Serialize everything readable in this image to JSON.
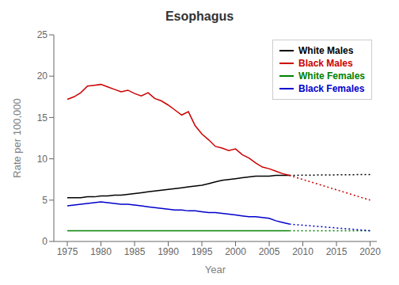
{
  "chart_data": {
    "type": "line",
    "title": "Esophagus",
    "xlabel": "Year",
    "ylabel": "Rate per 100,000",
    "x": [
      1975,
      1976,
      1977,
      1978,
      1979,
      1980,
      1981,
      1982,
      1983,
      1984,
      1985,
      1986,
      1987,
      1988,
      1989,
      1990,
      1991,
      1992,
      1993,
      1994,
      1995,
      1996,
      1997,
      1998,
      1999,
      2000,
      2001,
      2002,
      2003,
      2004,
      2005,
      2006,
      2007,
      2008,
      2020
    ],
    "xlim": [
      1973,
      2021
    ],
    "xticks": [
      1975,
      1980,
      1985,
      1990,
      1995,
      2000,
      2005,
      2010,
      2015,
      2020
    ],
    "ylim": [
      0,
      25
    ],
    "yticks": [
      0,
      5,
      10,
      15,
      20,
      25
    ],
    "grid": false,
    "legend": "upper right",
    "series": [
      {
        "name": "White Males",
        "color": "#000000",
        "line_style": "solid",
        "values": [
          5.3,
          5.3,
          5.3,
          5.4,
          5.4,
          5.5,
          5.5,
          5.6,
          5.6,
          5.7,
          5.8,
          5.9,
          6.0,
          6.1,
          6.2,
          6.3,
          6.4,
          6.5,
          6.6,
          6.7,
          6.8,
          7.0,
          7.2,
          7.4,
          7.5,
          7.6,
          7.7,
          7.8,
          7.9,
          7.9,
          7.9,
          8.0,
          8.0,
          8.0,
          null
        ]
      },
      {
        "name": "Black Males",
        "color": "#cc0000",
        "line_style": "solid",
        "values": [
          17.2,
          17.5,
          18.0,
          18.8,
          18.9,
          19.0,
          18.7,
          18.4,
          18.1,
          18.3,
          17.9,
          17.6,
          18.0,
          17.3,
          17.0,
          16.5,
          15.9,
          15.3,
          15.7,
          14.0,
          13.0,
          12.3,
          11.5,
          11.3,
          11.0,
          11.2,
          10.5,
          10.1,
          9.5,
          9.0,
          8.8,
          8.5,
          8.2,
          8.0,
          null
        ]
      },
      {
        "name": "White Females",
        "color": "#008000",
        "line_style": "solid",
        "values": [
          1.3,
          1.3,
          1.3,
          1.3,
          1.3,
          1.3,
          1.3,
          1.3,
          1.3,
          1.3,
          1.3,
          1.3,
          1.3,
          1.3,
          1.3,
          1.3,
          1.3,
          1.3,
          1.3,
          1.3,
          1.3,
          1.3,
          1.3,
          1.3,
          1.3,
          1.3,
          1.3,
          1.3,
          1.3,
          1.3,
          1.3,
          1.3,
          1.3,
          1.3,
          null
        ]
      },
      {
        "name": "Black Females",
        "color": "#0000cc",
        "line_style": "solid",
        "values": [
          4.3,
          4.4,
          4.5,
          4.6,
          4.7,
          4.8,
          4.7,
          4.6,
          4.5,
          4.5,
          4.4,
          4.3,
          4.2,
          4.1,
          4.0,
          3.9,
          3.8,
          3.8,
          3.7,
          3.7,
          3.6,
          3.5,
          3.5,
          3.4,
          3.3,
          3.2,
          3.1,
          3.0,
          3.0,
          2.9,
          2.8,
          2.5,
          2.3,
          2.1,
          null
        ]
      },
      {
        "color": "#000000",
        "line_style": "dotted",
        "values": [
          null,
          null,
          null,
          null,
          null,
          null,
          null,
          null,
          null,
          null,
          null,
          null,
          null,
          null,
          null,
          null,
          null,
          null,
          null,
          null,
          null,
          null,
          null,
          null,
          null,
          null,
          null,
          null,
          null,
          null,
          null,
          null,
          null,
          8.0,
          8.1
        ]
      },
      {
        "color": "#cc0000",
        "line_style": "dotted",
        "values": [
          null,
          null,
          null,
          null,
          null,
          null,
          null,
          null,
          null,
          null,
          null,
          null,
          null,
          null,
          null,
          null,
          null,
          null,
          null,
          null,
          null,
          null,
          null,
          null,
          null,
          null,
          null,
          null,
          null,
          null,
          null,
          null,
          null,
          8.0,
          5.0
        ]
      },
      {
        "color": "#008000",
        "line_style": "dotted",
        "values": [
          null,
          null,
          null,
          null,
          null,
          null,
          null,
          null,
          null,
          null,
          null,
          null,
          null,
          null,
          null,
          null,
          null,
          null,
          null,
          null,
          null,
          null,
          null,
          null,
          null,
          null,
          null,
          null,
          null,
          null,
          null,
          null,
          null,
          1.3,
          1.3
        ]
      },
      {
        "color": "#0000cc",
        "line_style": "dotted",
        "values": [
          null,
          null,
          null,
          null,
          null,
          null,
          null,
          null,
          null,
          null,
          null,
          null,
          null,
          null,
          null,
          null,
          null,
          null,
          null,
          null,
          null,
          null,
          null,
          null,
          null,
          null,
          null,
          null,
          null,
          null,
          null,
          null,
          null,
          2.1,
          1.3
        ]
      }
    ]
  }
}
